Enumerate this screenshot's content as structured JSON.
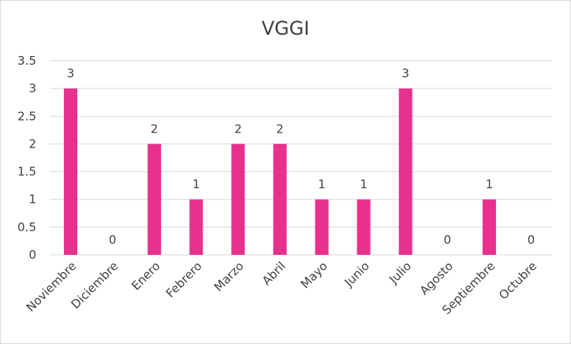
{
  "chart_data": {
    "type": "bar",
    "title": "VGGI",
    "categories": [
      "Noviembre",
      "Diciembre",
      "Enero",
      "Febrero",
      "Marzo",
      "Abril",
      "Mayo",
      "Junio",
      "Julio",
      "Agosto",
      "Septiembre",
      "Octubre"
    ],
    "values": [
      3,
      0,
      2,
      1,
      2,
      2,
      1,
      1,
      3,
      0,
      1,
      0
    ],
    "ylim": [
      0,
      3.5
    ],
    "yticks": [
      "0",
      "0.5",
      "1",
      "1.5",
      "2",
      "2.5",
      "3",
      "3.5"
    ],
    "grid": true,
    "bar_color": "#E8308E",
    "grid_color": "#d9d9d9"
  }
}
